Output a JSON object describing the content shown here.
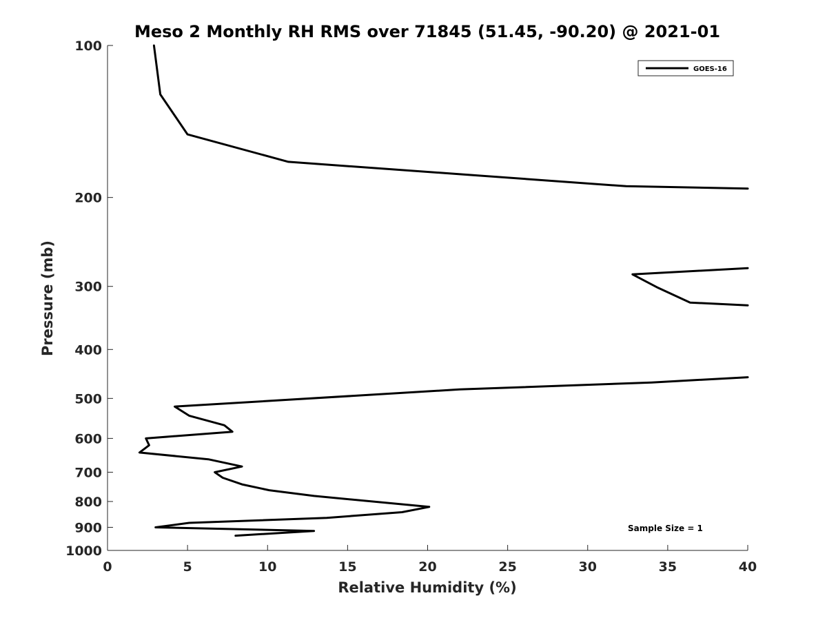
{
  "chart_data": {
    "type": "line",
    "title": "Meso 2 Monthly RH RMS over 71845 (51.45, -90.20) @ 2021-01",
    "xlabel": "Relative Humidity (%)",
    "ylabel": "Pressure (mb)",
    "xlim": [
      0,
      40
    ],
    "ylim": [
      100,
      1000
    ],
    "y_scale": "log",
    "y_reversed": true,
    "x_ticks": [
      "0",
      "5",
      "10",
      "15",
      "20",
      "25",
      "30",
      "35",
      "40"
    ],
    "y_ticks": [
      "100",
      "200",
      "300",
      "400",
      "500",
      "600",
      "700",
      "800",
      "900",
      "1000"
    ],
    "grid": false,
    "legend_position": "top-right",
    "annotation": "Sample Size = 1",
    "series": [
      {
        "name": "GOES-16",
        "color": "#000000",
        "segments": [
          [
            {
              "x": 2.9,
              "y": 100
            },
            {
              "x": 3.3,
              "y": 125
            },
            {
              "x": 5.0,
              "y": 150
            },
            {
              "x": 11.3,
              "y": 170
            },
            {
              "x": 32.4,
              "y": 190
            },
            {
              "x": 40.0,
              "y": 192
            }
          ],
          [
            {
              "x": 40.0,
              "y": 276
            },
            {
              "x": 32.8,
              "y": 284
            },
            {
              "x": 34.4,
              "y": 302
            },
            {
              "x": 36.4,
              "y": 323
            },
            {
              "x": 40.0,
              "y": 327
            }
          ],
          [
            {
              "x": 40.0,
              "y": 454
            },
            {
              "x": 34.0,
              "y": 465
            },
            {
              "x": 22.0,
              "y": 480
            },
            {
              "x": 4.2,
              "y": 519
            },
            {
              "x": 5.1,
              "y": 541
            },
            {
              "x": 7.3,
              "y": 565
            },
            {
              "x": 7.8,
              "y": 582
            },
            {
              "x": 2.4,
              "y": 600
            },
            {
              "x": 2.6,
              "y": 619
            },
            {
              "x": 2.0,
              "y": 640
            },
            {
              "x": 6.3,
              "y": 660
            },
            {
              "x": 8.4,
              "y": 682
            },
            {
              "x": 6.7,
              "y": 700
            },
            {
              "x": 7.2,
              "y": 718
            },
            {
              "x": 8.4,
              "y": 740
            },
            {
              "x": 10.1,
              "y": 760
            },
            {
              "x": 12.9,
              "y": 780
            },
            {
              "x": 20.1,
              "y": 820
            },
            {
              "x": 18.4,
              "y": 840
            },
            {
              "x": 13.7,
              "y": 862
            },
            {
              "x": 5.1,
              "y": 882
            },
            {
              "x": 3.0,
              "y": 900
            },
            {
              "x": 12.9,
              "y": 915
            },
            {
              "x": 8.0,
              "y": 935
            }
          ]
        ]
      }
    ]
  }
}
